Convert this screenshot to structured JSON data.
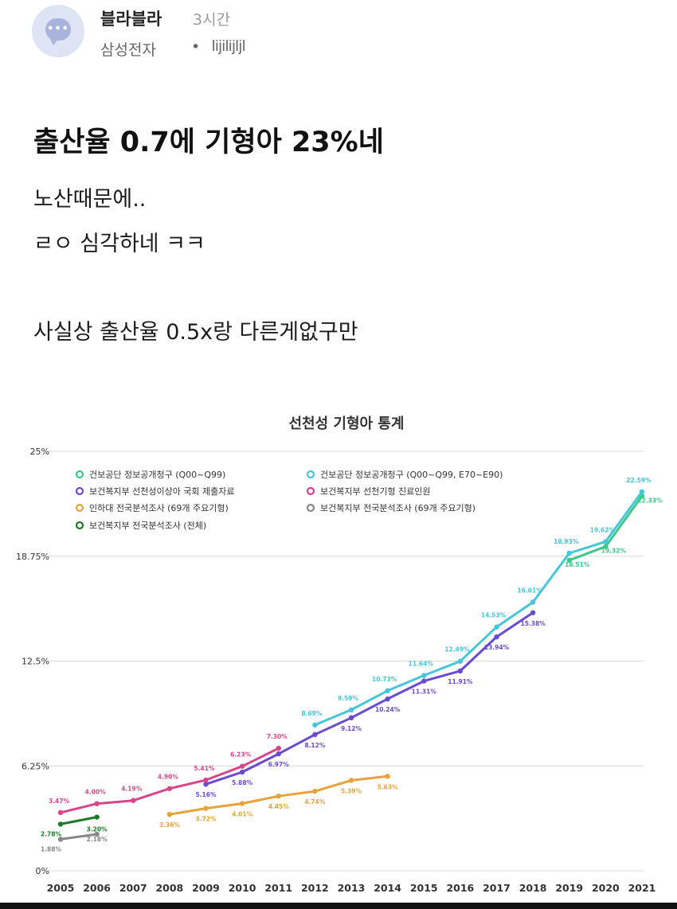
{
  "post": {
    "author": "블라블라",
    "time": "3시간",
    "board": "삼성전자",
    "separator": "•",
    "nickname": "lijilijljl",
    "title": "출산율 0.7에 기형아 23%네",
    "lines": [
      "노산때문에..",
      "ㄹㅇ 심각하네 ㅋㅋ",
      "사실상 출산율 0.5x랑 다른게없구만"
    ]
  },
  "colors": {
    "nhis_q": "#3ec98a",
    "nhis_qe": "#46c6d8",
    "mohw_report": "#6a4bd0",
    "mohw_clinic": "#d9458a",
    "inha": "#e8a23a",
    "mohw_survey69": "#888888",
    "mohw_survey_all": "#1e7a2a"
  },
  "chart_data": {
    "type": "line",
    "title": "선천성 기형아 통계",
    "ylim": [
      0,
      25
    ],
    "yticks": [
      "25%",
      "18.75%",
      "12.5%",
      "6.25%",
      "0%"
    ],
    "ytick_values": [
      25,
      18.75,
      12.5,
      6.25,
      0
    ],
    "x": [
      "2005",
      "2006",
      "2007",
      "2008",
      "2009",
      "2010",
      "2011",
      "2012",
      "2013",
      "2014",
      "2015",
      "2016",
      "2017",
      "2018",
      "2019",
      "2020",
      "2021"
    ],
    "grid": true,
    "legend_position": "top-left",
    "legend": [
      "건보공단 정보공개청구 (Q00~Q99)",
      "건보공단 정보공개청구 (Q00~Q99, E70~E90)",
      "보건복지부 선천성이상아 국회 제출자료",
      "보건복지부 선천기형 진료인원",
      "인하대 전국분석조사 (69개 주요기형)",
      "보건복지부 전국분석조사 (69개 주요기형)",
      "보건복지부 전국분석조사 (전체)"
    ],
    "series": [
      {
        "name": "건보공단 정보공개청구 (Q00~Q99)",
        "key": "nhis_q",
        "points": [
          [
            2019,
            18.51
          ],
          [
            2020,
            19.32
          ],
          [
            2021,
            22.33
          ]
        ],
        "labels": [
          "18.51%",
          "19.32%",
          "22.33%"
        ]
      },
      {
        "name": "건보공단 정보공개청구 (Q00~Q99, E70~E90)",
        "key": "nhis_qe",
        "points": [
          [
            2012,
            8.69
          ],
          [
            2013,
            9.59
          ],
          [
            2014,
            10.73
          ],
          [
            2015,
            11.64
          ],
          [
            2016,
            12.49
          ],
          [
            2017,
            14.53
          ],
          [
            2018,
            16.01
          ],
          [
            2019,
            18.93
          ],
          [
            2020,
            19.62
          ],
          [
            2021,
            22.59
          ]
        ],
        "labels": [
          "8.69%",
          "9.59%",
          "10.73%",
          "11.64%",
          "12.49%",
          "14.53%",
          "16.01%",
          "18.93%",
          "19.62%",
          "22.59%"
        ]
      },
      {
        "name": "보건복지부 선천성이상아 국회 제출자료",
        "key": "mohw_report",
        "points": [
          [
            2009,
            5.16
          ],
          [
            2010,
            5.88
          ],
          [
            2011,
            6.97
          ],
          [
            2012,
            8.12
          ],
          [
            2013,
            9.12
          ],
          [
            2014,
            10.24
          ],
          [
            2015,
            11.31
          ],
          [
            2016,
            11.91
          ],
          [
            2017,
            13.94
          ],
          [
            2018,
            15.38
          ]
        ],
        "labels": [
          "5.16%",
          "5.88%",
          "6.97%",
          "8.12%",
          "9.12%",
          "10.24%",
          "11.31%",
          "11.91%",
          "13.94%",
          "15.38%"
        ]
      },
      {
        "name": "보건복지부 선천기형 진료인원",
        "key": "mohw_clinic",
        "points": [
          [
            2005,
            3.47
          ],
          [
            2006,
            4.0
          ],
          [
            2007,
            4.19
          ],
          [
            2008,
            4.9
          ],
          [
            2009,
            5.41
          ],
          [
            2010,
            6.23
          ],
          [
            2011,
            7.3
          ]
        ],
        "labels": [
          "3.47%",
          "4.00%",
          "4.19%",
          "4.90%",
          "5.41%",
          "6.23%",
          "7.30%"
        ]
      },
      {
        "name": "인하대 전국분석조사 (69개 주요기형)",
        "key": "inha",
        "points": [
          [
            2008,
            3.36
          ],
          [
            2009,
            3.72
          ],
          [
            2010,
            4.01
          ],
          [
            2011,
            4.45
          ],
          [
            2012,
            4.74
          ],
          [
            2013,
            5.39
          ],
          [
            2014,
            5.63
          ]
        ],
        "labels": [
          "3.36%",
          "3.72%",
          "4.01%",
          "4.45%",
          "4.74%",
          "5.39%",
          "5.63%"
        ]
      },
      {
        "name": "보건복지부 전국분석조사 (69개 주요기형)",
        "key": "mohw_survey69",
        "points": [
          [
            2005,
            1.88
          ],
          [
            2006,
            2.18
          ]
        ],
        "labels": [
          "1.88%",
          "2.18%"
        ]
      },
      {
        "name": "보건복지부 전국분석조사 (전체)",
        "key": "mohw_survey_all",
        "points": [
          [
            2005,
            2.78
          ],
          [
            2006,
            3.2
          ]
        ],
        "labels": [
          "2.78%",
          "3.20%"
        ]
      }
    ]
  }
}
